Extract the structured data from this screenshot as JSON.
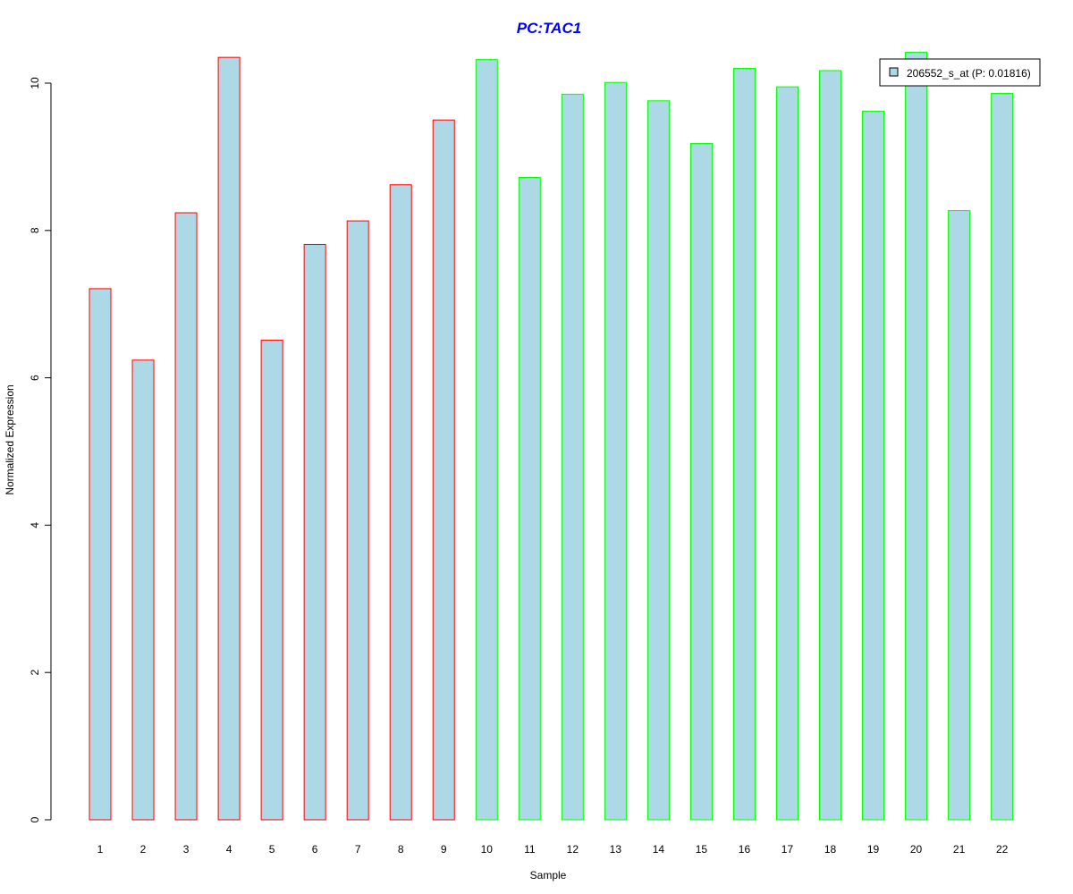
{
  "chart_data": {
    "type": "bar",
    "title": "PC:TAC1",
    "xlabel": "Sample",
    "ylabel": "Normalized Expression",
    "categories": [
      "1",
      "2",
      "3",
      "4",
      "5",
      "6",
      "7",
      "8",
      "9",
      "10",
      "11",
      "12",
      "13",
      "14",
      "15",
      "16",
      "17",
      "18",
      "19",
      "20",
      "21",
      "22"
    ],
    "series": [
      {
        "name": "206552_s_at (P: 0.01816)",
        "values": [
          7.21,
          6.24,
          8.24,
          10.35,
          6.51,
          7.81,
          8.13,
          8.62,
          9.5,
          10.32,
          8.72,
          9.85,
          10.01,
          9.76,
          9.18,
          10.2,
          9.95,
          10.17,
          9.62,
          10.42,
          8.27,
          9.86
        ]
      }
    ],
    "groups": [
      {
        "samples": [
          "1",
          "2",
          "3",
          "4",
          "5",
          "6",
          "7",
          "8",
          "9"
        ],
        "border_color": "#ff0000"
      },
      {
        "samples": [
          "10",
          "11",
          "12",
          "13",
          "14",
          "15",
          "16",
          "17",
          "18",
          "19",
          "20",
          "21",
          "22"
        ],
        "border_color": "#00ff00"
      }
    ],
    "yticks": [
      0,
      2,
      4,
      6,
      8,
      10
    ],
    "ylim": [
      0,
      10.42
    ],
    "grid": false,
    "legend_position": "top-right"
  },
  "colors": {
    "bar_fill": "#add8e6",
    "title": "#0000ff",
    "axis": "#000000"
  }
}
